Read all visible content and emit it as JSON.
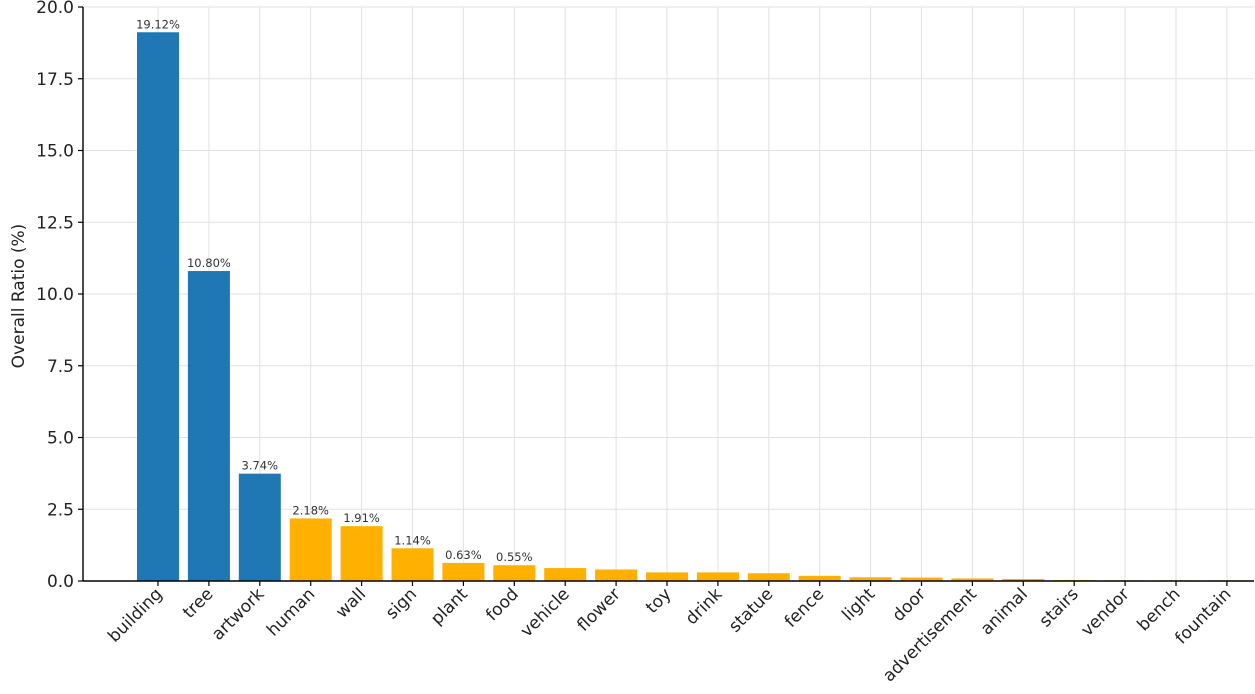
{
  "chart_data": {
    "type": "bar",
    "title": "",
    "xlabel": "",
    "ylabel": "Overall Ratio (%)",
    "ylim": [
      0,
      20
    ],
    "yticks": [
      "0.0",
      "2.5",
      "5.0",
      "7.5",
      "10.0",
      "12.5",
      "15.0",
      "17.5",
      "20.0"
    ],
    "grid": true,
    "categories": [
      "building",
      "tree",
      "artwork",
      "human",
      "wall",
      "sign",
      "plant",
      "food",
      "vehicle",
      "flower",
      "toy",
      "drink",
      "statue",
      "fence",
      "light",
      "door",
      "advertisement",
      "animal",
      "stairs",
      "vendor",
      "bench",
      "fountain"
    ],
    "values": [
      19.12,
      10.8,
      3.74,
      2.18,
      1.91,
      1.14,
      0.63,
      0.55,
      0.45,
      0.4,
      0.3,
      0.3,
      0.27,
      0.18,
      0.13,
      0.12,
      0.09,
      0.07,
      0.03,
      0.02,
      0.01,
      0.01
    ],
    "data_labels": [
      "19.12%",
      "10.80%",
      "3.74%",
      "2.18%",
      "1.91%",
      "1.14%",
      "0.63%",
      "0.55%",
      "",
      "",
      "",
      "",
      "",
      "",
      "",
      "",
      "",
      "",
      "",
      "",
      "",
      ""
    ],
    "colors": [
      "#1f77b4",
      "#1f77b4",
      "#1f77b4",
      "#ffb000",
      "#ffb000",
      "#ffb000",
      "#ffb000",
      "#ffb000",
      "#ffb000",
      "#ffb000",
      "#ffb000",
      "#ffb000",
      "#ffb000",
      "#ffb000",
      "#ffb000",
      "#ffb000",
      "#ffb000",
      "#ffb000",
      "#ffb000",
      "#ffb000",
      "#ffb000",
      "#ffb000"
    ]
  }
}
